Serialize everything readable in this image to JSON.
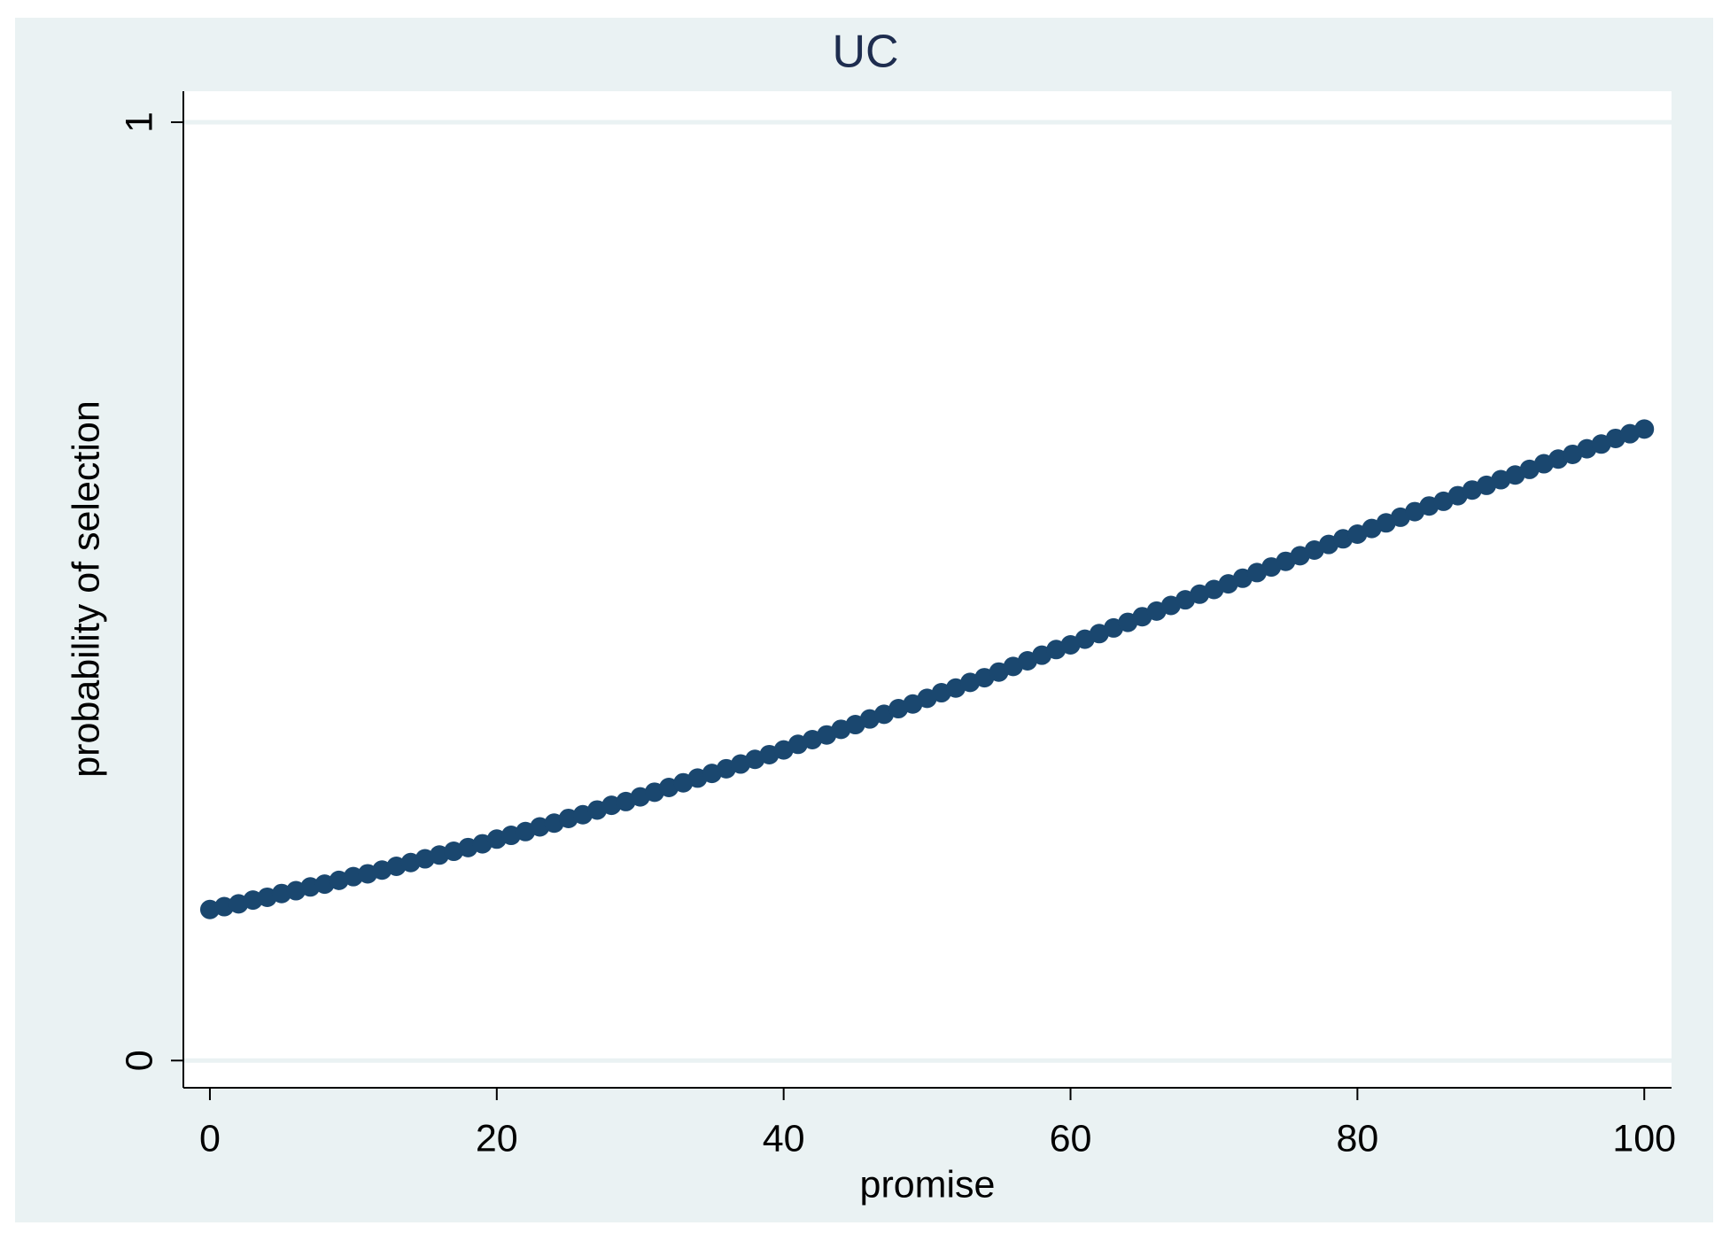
{
  "chart_data": {
    "type": "scatter",
    "title": "UC",
    "x_label": "promise",
    "y_label": "probability of selection",
    "x": [
      0,
      1,
      2,
      3,
      4,
      5,
      6,
      7,
      8,
      9,
      10,
      11,
      12,
      13,
      14,
      15,
      16,
      17,
      18,
      19,
      20,
      21,
      22,
      23,
      24,
      25,
      26,
      27,
      28,
      29,
      30,
      31,
      32,
      33,
      34,
      35,
      36,
      37,
      38,
      39,
      40,
      41,
      42,
      43,
      44,
      45,
      46,
      47,
      48,
      49,
      50,
      51,
      52,
      53,
      54,
      55,
      56,
      57,
      58,
      59,
      60,
      61,
      62,
      63,
      64,
      65,
      66,
      67,
      68,
      69,
      70,
      71,
      72,
      73,
      74,
      75,
      76,
      77,
      78,
      79,
      80,
      81,
      82,
      83,
      84,
      85,
      86,
      87,
      88,
      89,
      90,
      91,
      92,
      93,
      94,
      95,
      96,
      97,
      98,
      99,
      100
    ],
    "series": [
      {
        "color": "#1a476f",
        "values": [
          0.161,
          0.164,
          0.167,
          0.171,
          0.174,
          0.178,
          0.181,
          0.185,
          0.188,
          0.192,
          0.196,
          0.199,
          0.203,
          0.207,
          0.211,
          0.215,
          0.219,
          0.223,
          0.227,
          0.231,
          0.236,
          0.24,
          0.244,
          0.249,
          0.253,
          0.258,
          0.262,
          0.267,
          0.272,
          0.276,
          0.281,
          0.286,
          0.291,
          0.296,
          0.301,
          0.306,
          0.311,
          0.316,
          0.321,
          0.326,
          0.331,
          0.337,
          0.342,
          0.347,
          0.353,
          0.358,
          0.364,
          0.369,
          0.375,
          0.38,
          0.386,
          0.392,
          0.397,
          0.403,
          0.408,
          0.414,
          0.42,
          0.426,
          0.432,
          0.438,
          0.443,
          0.449,
          0.455,
          0.461,
          0.467,
          0.473,
          0.479,
          0.485,
          0.491,
          0.497,
          0.502,
          0.508,
          0.514,
          0.52,
          0.526,
          0.532,
          0.538,
          0.544,
          0.55,
          0.556,
          0.561,
          0.567,
          0.573,
          0.579,
          0.585,
          0.591,
          0.596,
          0.602,
          0.608,
          0.613,
          0.619,
          0.624,
          0.63,
          0.636,
          0.641,
          0.646,
          0.652,
          0.657,
          0.663,
          0.668,
          0.673
        ]
      }
    ],
    "xlim": [
      -1.85,
      101.9
    ],
    "ylim": [
      -0.029,
      1.033
    ],
    "xticks": [
      0,
      20,
      40,
      60,
      80,
      100
    ],
    "yticks": [
      0,
      1
    ],
    "grid": true
  }
}
